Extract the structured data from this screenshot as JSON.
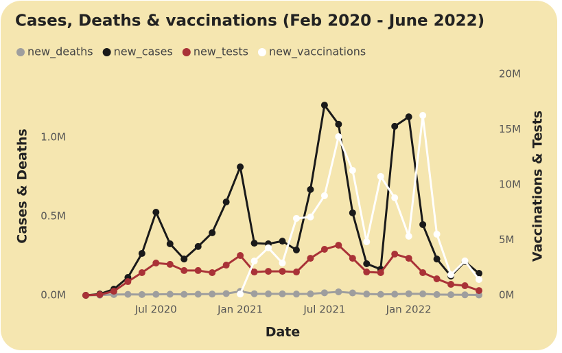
{
  "chart_data": {
    "type": "line",
    "title": "Cases, Deaths & vaccinations (Feb 2020 - June 2022)",
    "x_label": "Date",
    "y_label": "Cases & Deaths",
    "y2_label": "Vaccinations & Tests",
    "categories": [
      null,
      null,
      null,
      null,
      null,
      "Jul 2020",
      null,
      null,
      null,
      null,
      null,
      "Jan 2021",
      null,
      null,
      null,
      null,
      null,
      "Jul 2021",
      null,
      null,
      null,
      null,
      null,
      "Jan 2022",
      null,
      null,
      null,
      null,
      null
    ],
    "ylim": [
      0,
      1400000
    ],
    "yticks": [
      {
        "value": 0,
        "label": "0.0M"
      },
      {
        "value": 500000,
        "label": "0.5M"
      },
      {
        "value": 1000000,
        "label": "1.0M"
      }
    ],
    "y2lim": [
      0,
      20000000
    ],
    "y2ticks": [
      {
        "value": 0,
        "label": "0M"
      },
      {
        "value": 5000000,
        "label": "5M"
      },
      {
        "value": 10000000,
        "label": "10M"
      },
      {
        "value": 15000000,
        "label": "15M"
      },
      {
        "value": 20000000,
        "label": "20M"
      }
    ],
    "grid": false,
    "legend": "top-left",
    "series": [
      {
        "name": "new_deaths",
        "color": "#9e9e9e",
        "axis": "y",
        "values": [
          0,
          1000,
          5000,
          6000,
          5000,
          6000,
          7000,
          6000,
          7000,
          8000,
          11000,
          25000,
          10000,
          9000,
          9000,
          8000,
          9000,
          16000,
          22000,
          15000,
          8000,
          6000,
          7000,
          10000,
          9000,
          5000,
          4000,
          3000,
          2000
        ]
      },
      {
        "name": "new_cases",
        "color": "#1a1a1a",
        "axis": "y",
        "values": [
          0,
          8000,
          39000,
          113000,
          265000,
          526000,
          326000,
          230000,
          309000,
          396000,
          591000,
          813000,
          330000,
          326000,
          343000,
          287000,
          670000,
          1204000,
          1083000,
          522000,
          200000,
          165000,
          1070000,
          1130000,
          448000,
          230000,
          122000,
          213000,
          139000
        ]
      },
      {
        "name": "new_tests",
        "color": "#a93237",
        "axis": "y2",
        "values": [
          0,
          60000,
          370000,
          1240000,
          2050000,
          2920000,
          2800000,
          2240000,
          2240000,
          2050000,
          2730000,
          3600000,
          2110000,
          2170000,
          2170000,
          2110000,
          3350000,
          4160000,
          4530000,
          3350000,
          2110000,
          2050000,
          3730000,
          3350000,
          2050000,
          1490000,
          990000,
          870000,
          430000
        ]
      },
      {
        "name": "new_vaccinations",
        "color": "#ffffff",
        "axis": "y2",
        "values": [
          null,
          null,
          null,
          null,
          null,
          null,
          null,
          null,
          null,
          null,
          null,
          120000,
          3100000,
          4290000,
          2920000,
          6960000,
          7080000,
          9010000,
          14350000,
          11300000,
          4840000,
          10750000,
          8820000,
          5340000,
          16270000,
          5530000,
          1860000,
          3110000,
          1430000
        ]
      }
    ]
  }
}
